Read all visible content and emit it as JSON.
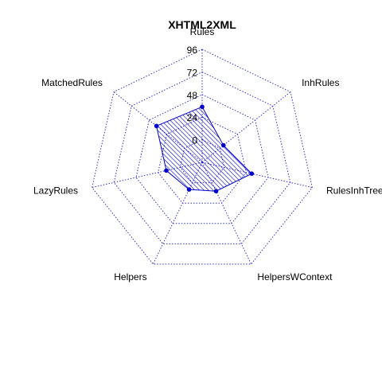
{
  "chart_data": {
    "type": "radar",
    "title": "XHTML2XML",
    "axes": [
      "Rules",
      "InhRules",
      "RulesInhTrees",
      "HelpersWContext",
      "Helpers",
      "LazyRules",
      "MatchedRules"
    ],
    "values": [
      35,
      5,
      30,
      10,
      8,
      15,
      38
    ],
    "ticks": [
      "0",
      "24",
      "48",
      "72",
      "96"
    ],
    "rlim": [
      -24,
      96
    ],
    "grid": true,
    "colors": {
      "grid": "#3333cc",
      "series": "#0000cc",
      "fill": "#0000cc"
    }
  }
}
